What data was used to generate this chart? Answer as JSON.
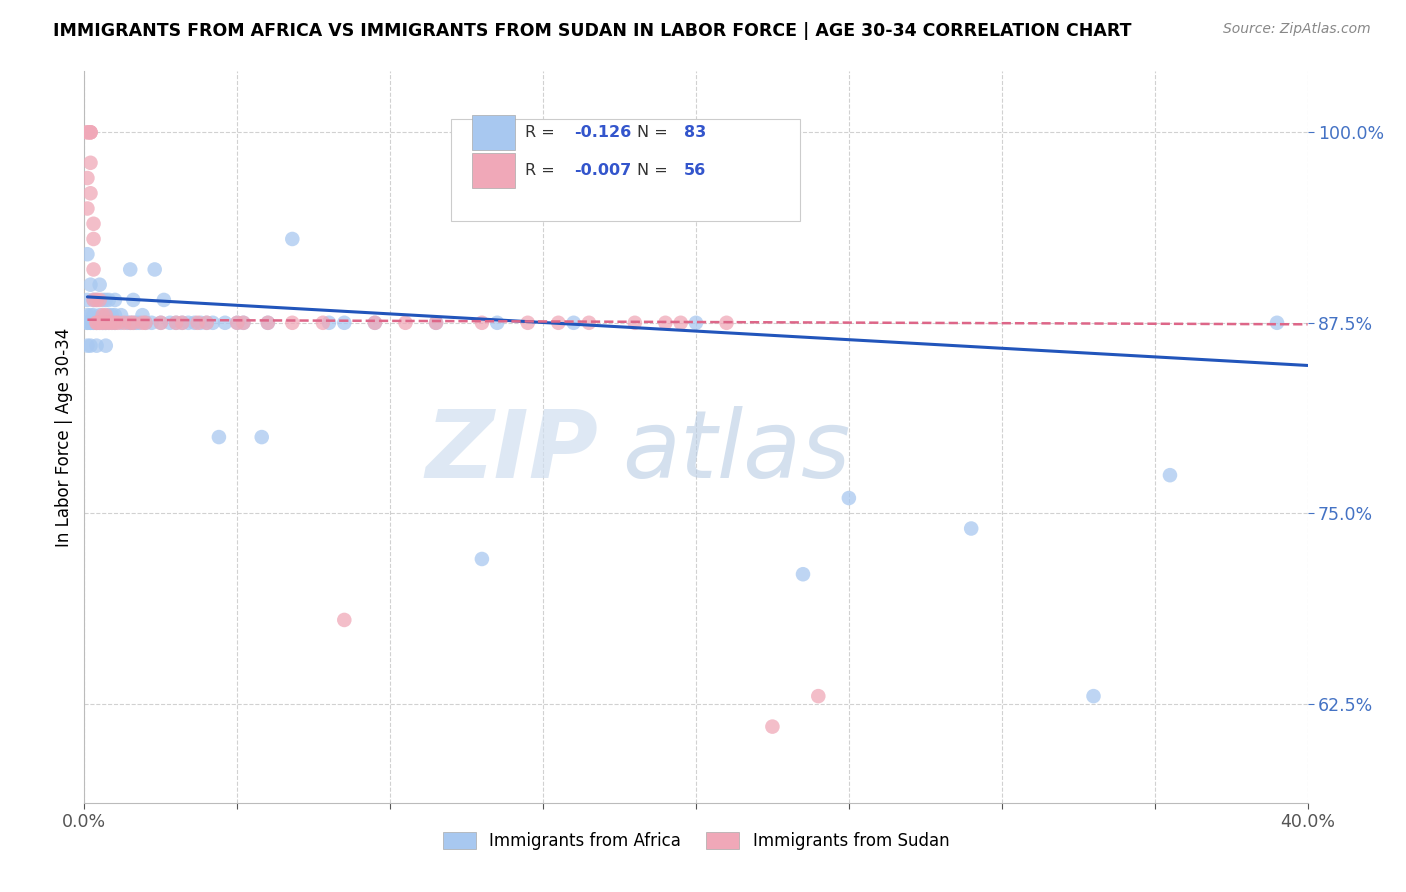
{
  "title": "IMMIGRANTS FROM AFRICA VS IMMIGRANTS FROM SUDAN IN LABOR FORCE | AGE 30-34 CORRELATION CHART",
  "source": "Source: ZipAtlas.com",
  "ylabel": "In Labor Force | Age 30-34",
  "xlim": [
    0.0,
    0.4
  ],
  "ylim": [
    0.56,
    1.04
  ],
  "yticks": [
    0.625,
    0.75,
    0.875,
    1.0
  ],
  "ytick_labels": [
    "62.5%",
    "75.0%",
    "87.5%",
    "100.0%"
  ],
  "xticks": [
    0.0,
    0.05,
    0.1,
    0.15,
    0.2,
    0.25,
    0.3,
    0.35,
    0.4
  ],
  "xtick_labels": [
    "0.0%",
    "",
    "",
    "",
    "",
    "",
    "",
    "",
    "40.0%"
  ],
  "legend_africa_R": "-0.126",
  "legend_africa_N": "83",
  "legend_sudan_R": "-0.007",
  "legend_sudan_N": "56",
  "africa_color": "#a8c8f0",
  "sudan_color": "#f0a8b8",
  "africa_line_color": "#2255bb",
  "sudan_line_color": "#dd6688",
  "watermark_zip": "ZIP",
  "watermark_atlas": "atlas",
  "africa_trend_x0": 0.001,
  "africa_trend_x1": 0.4,
  "africa_trend_y0": 0.892,
  "africa_trend_y1": 0.847,
  "sudan_trend_x0": 0.001,
  "sudan_trend_x1": 0.4,
  "sudan_trend_y0": 0.877,
  "sudan_trend_y1": 0.874,
  "africa_points_x": [
    0.001,
    0.001,
    0.001,
    0.001,
    0.001,
    0.001,
    0.002,
    0.002,
    0.002,
    0.002,
    0.002,
    0.003,
    0.003,
    0.003,
    0.003,
    0.004,
    0.004,
    0.004,
    0.004,
    0.005,
    0.005,
    0.005,
    0.006,
    0.006,
    0.006,
    0.007,
    0.007,
    0.007,
    0.007,
    0.008,
    0.008,
    0.008,
    0.009,
    0.009,
    0.01,
    0.01,
    0.01,
    0.01,
    0.012,
    0.012,
    0.014,
    0.015,
    0.015,
    0.016,
    0.016,
    0.017,
    0.018,
    0.019,
    0.02,
    0.022,
    0.023,
    0.025,
    0.026,
    0.028,
    0.03,
    0.032,
    0.034,
    0.036,
    0.038,
    0.04,
    0.042,
    0.044,
    0.046,
    0.05,
    0.052,
    0.058,
    0.06,
    0.068,
    0.08,
    0.085,
    0.095,
    0.115,
    0.13,
    0.135,
    0.16,
    0.2,
    0.235,
    0.25,
    0.29,
    0.33,
    0.355,
    0.39
  ],
  "africa_points_y": [
    0.875,
    0.89,
    0.86,
    0.92,
    0.88,
    0.875,
    0.875,
    0.9,
    0.88,
    0.875,
    0.86,
    0.875,
    0.89,
    0.875,
    0.88,
    0.875,
    0.89,
    0.875,
    0.86,
    0.875,
    0.9,
    0.88,
    0.875,
    0.89,
    0.875,
    0.875,
    0.89,
    0.875,
    0.86,
    0.875,
    0.89,
    0.88,
    0.875,
    0.88,
    0.875,
    0.89,
    0.88,
    0.875,
    0.875,
    0.88,
    0.875,
    0.91,
    0.875,
    0.875,
    0.89,
    0.875,
    0.875,
    0.88,
    0.875,
    0.875,
    0.91,
    0.875,
    0.89,
    0.875,
    0.875,
    0.875,
    0.875,
    0.875,
    0.875,
    0.875,
    0.875,
    0.8,
    0.875,
    0.875,
    0.875,
    0.8,
    0.875,
    0.93,
    0.875,
    0.875,
    0.875,
    0.875,
    0.72,
    0.875,
    0.875,
    0.875,
    0.71,
    0.76,
    0.74,
    0.63,
    0.775,
    0.875
  ],
  "sudan_points_x": [
    0.001,
    0.001,
    0.001,
    0.001,
    0.002,
    0.002,
    0.002,
    0.002,
    0.002,
    0.003,
    0.003,
    0.003,
    0.003,
    0.004,
    0.004,
    0.004,
    0.005,
    0.005,
    0.006,
    0.006,
    0.007,
    0.007,
    0.008,
    0.009,
    0.01,
    0.011,
    0.013,
    0.015,
    0.016,
    0.019,
    0.02,
    0.025,
    0.03,
    0.032,
    0.037,
    0.04,
    0.05,
    0.052,
    0.06,
    0.068,
    0.078,
    0.085,
    0.095,
    0.105,
    0.115,
    0.13,
    0.145,
    0.155,
    0.165,
    0.18,
    0.19,
    0.195,
    0.21,
    0.225,
    0.24
  ],
  "sudan_points_y": [
    1.0,
    1.0,
    0.97,
    0.95,
    1.0,
    1.0,
    1.0,
    0.98,
    0.96,
    0.94,
    0.93,
    0.91,
    0.89,
    0.875,
    0.89,
    0.875,
    0.875,
    0.89,
    0.875,
    0.88,
    0.875,
    0.88,
    0.875,
    0.875,
    0.875,
    0.875,
    0.875,
    0.875,
    0.875,
    0.875,
    0.875,
    0.875,
    0.875,
    0.875,
    0.875,
    0.875,
    0.875,
    0.875,
    0.875,
    0.875,
    0.875,
    0.68,
    0.875,
    0.875,
    0.875,
    0.875,
    0.875,
    0.875,
    0.875,
    0.875,
    0.875,
    0.875,
    0.875,
    0.61,
    0.63
  ]
}
